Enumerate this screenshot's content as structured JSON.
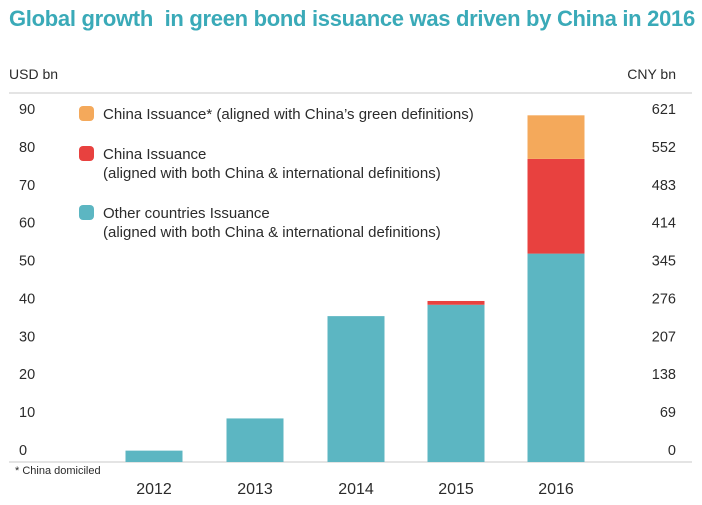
{
  "header": {
    "title": "Global growth  in green bond issuance was driven by China in 2016"
  },
  "footnote": "* China domiciled",
  "colors": {
    "china_china_only": "#f4a95b",
    "china_both": "#e8413f",
    "other": "#5cb6c2",
    "title": "#3aaab8"
  },
  "chart_data": {
    "type": "bar",
    "stacked": true,
    "categories": [
      "2012",
      "2013",
      "2014",
      "2015",
      "2016"
    ],
    "series": [
      {
        "name": "Other countries Issuance",
        "name_line2": "(aligned with both China & international definitions)",
        "color": "#5cb6c2",
        "values": [
          3,
          11.5,
          38.5,
          41.5,
          55
        ]
      },
      {
        "name": "China Issuance",
        "name_line2": "(aligned with both China & international definitions)",
        "color": "#e8413f",
        "values": [
          0,
          0,
          0,
          1,
          25
        ]
      },
      {
        "name": "China Issuance* (aligned with China’s green definitions)",
        "name_line2": "",
        "color": "#f4a95b",
        "values": [
          0,
          0,
          0,
          0,
          11.5
        ]
      }
    ],
    "legend_order": [
      2,
      1,
      0
    ],
    "ylabel": "USD bn",
    "ylabel_right": "CNY bn",
    "ylim": [
      0,
      90
    ],
    "yticks": [
      0,
      10,
      20,
      30,
      40,
      50,
      60,
      70,
      80,
      90
    ],
    "yticks_right": [
      "0",
      "69",
      "138",
      "207",
      "276",
      "345",
      "414",
      "483",
      "552",
      "621"
    ],
    "grid": false,
    "legend_position": "top-left"
  }
}
